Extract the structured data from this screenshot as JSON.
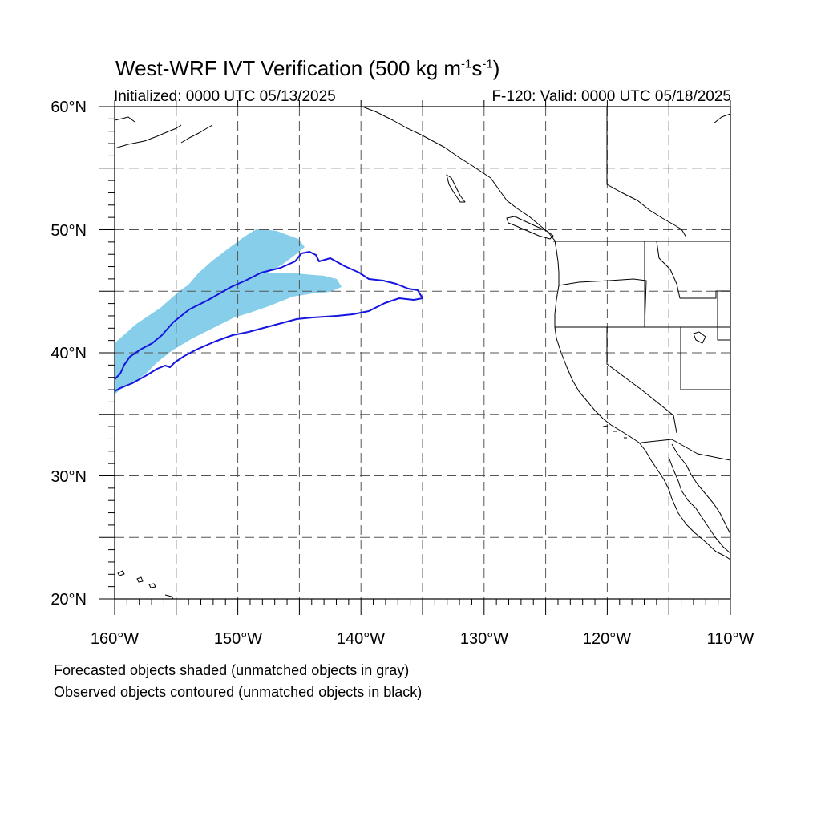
{
  "title": {
    "main": "West-WRF IVT Verification (500 kg m",
    "sup1": "-1",
    "mid": "s",
    "sup2": "-1",
    "end": ")"
  },
  "init_text": "Initialized: 0000 UTC 05/13/2025",
  "valid_text": "F-120: Valid: 0000 UTC 05/18/2025",
  "map": {
    "lon_range": [
      -160,
      -110
    ],
    "lat_range": [
      20,
      60
    ],
    "grid_lon_step": 5,
    "grid_lat_step": 5,
    "lat_labels": [
      "60°N",
      "50°N",
      "40°N",
      "30°N",
      "20°N"
    ],
    "lon_labels": [
      "160°W",
      "150°W",
      "140°W",
      "130°W",
      "120°W",
      "110°W"
    ],
    "colors": {
      "forecast_fill": "#87CEEB",
      "observed_contour": "#1515E0",
      "coastline": "#000000",
      "grid": "#555555"
    }
  },
  "footnotes": [
    "Forecasted objects shaded (unmatched objects in gray)",
    "Observed objects contoured (unmatched objects in black)"
  ]
}
